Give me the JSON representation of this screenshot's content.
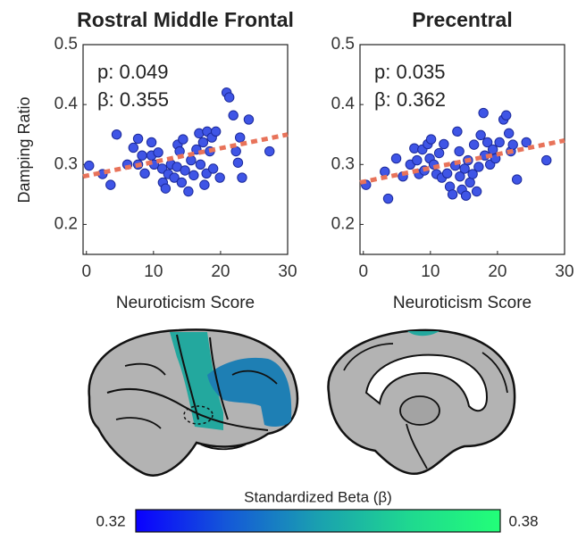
{
  "chart_data": [
    {
      "type": "scatter",
      "title": "Rostral Middle Frontal",
      "xlabel": "Neuroticism Score",
      "ylabel": "Damping Ratio",
      "annotations": [
        "p: 0.049",
        "β: 0.355"
      ],
      "x": [
        0.4,
        2.4,
        3.6,
        4.5,
        6.1,
        7,
        7.7,
        7.7,
        8.3,
        8.7,
        9.7,
        9.7,
        10.1,
        10.7,
        11.3,
        11.4,
        11.8,
        12.2,
        12.6,
        13.1,
        13.5,
        13.6,
        13.9,
        14.2,
        14.4,
        14.7,
        15.2,
        15.6,
        16,
        16.4,
        16.8,
        17,
        17.4,
        17.6,
        17.9,
        18,
        18.4,
        18.7,
        18.9,
        19.3,
        19.9,
        20.9,
        21.3,
        21.9,
        22.3,
        22.6,
        22.9,
        23.2,
        24.2,
        27.3
      ],
      "values": [
        0.298,
        0.284,
        0.266,
        0.35,
        0.3,
        0.328,
        0.343,
        0.3,
        0.315,
        0.285,
        0.337,
        0.315,
        0.3,
        0.32,
        0.293,
        0.27,
        0.26,
        0.284,
        0.3,
        0.278,
        0.296,
        0.333,
        0.322,
        0.27,
        0.342,
        0.29,
        0.255,
        0.307,
        0.282,
        0.325,
        0.352,
        0.3,
        0.337,
        0.266,
        0.285,
        0.355,
        0.322,
        0.345,
        0.293,
        0.355,
        0.278,
        0.42,
        0.412,
        0.382,
        0.322,
        0.303,
        0.345,
        0.278,
        0.375,
        0.322
      ],
      "color": "#3f55e6",
      "fit": {
        "x": [
          -0.5,
          30
        ],
        "y": [
          0.28,
          0.35
        ],
        "color": "#e8735a"
      },
      "xlim": [
        -0.5,
        30
      ],
      "ylim": [
        0.15,
        0.5
      ],
      "xticks": [
        0,
        10,
        20,
        30
      ],
      "yticks": [
        0.2,
        0.3,
        0.4,
        0.5
      ]
    },
    {
      "type": "scatter",
      "title": "Precentral",
      "xlabel": "Neuroticism Score",
      "annotations": [
        "p: 0.035",
        "β: 0.362"
      ],
      "x": [
        0.4,
        3.2,
        3.7,
        4.9,
        5.9,
        7,
        7.6,
        8,
        8.3,
        8.8,
        9.1,
        9.6,
        9.9,
        10.1,
        10.5,
        10.9,
        11.3,
        11.7,
        12,
        12.5,
        12.9,
        13.3,
        13.7,
        14,
        14.3,
        14.4,
        14.7,
        15.1,
        15.3,
        15.6,
        15.9,
        16.3,
        16.5,
        16.9,
        17.2,
        17.5,
        17.9,
        18.1,
        18.5,
        18.9,
        19.3,
        19.7,
        20.3,
        20.9,
        21.3,
        21.7,
        22,
        22.3,
        22.9,
        24.3,
        27.3
      ],
      "values": [
        0.266,
        0.288,
        0.243,
        0.31,
        0.28,
        0.3,
        0.327,
        0.307,
        0.284,
        0.325,
        0.29,
        0.334,
        0.31,
        0.342,
        0.3,
        0.284,
        0.319,
        0.278,
        0.334,
        0.285,
        0.263,
        0.25,
        0.298,
        0.355,
        0.322,
        0.28,
        0.258,
        0.293,
        0.248,
        0.307,
        0.27,
        0.284,
        0.333,
        0.255,
        0.296,
        0.349,
        0.386,
        0.315,
        0.337,
        0.3,
        0.325,
        0.31,
        0.337,
        0.375,
        0.382,
        0.352,
        0.322,
        0.333,
        0.275,
        0.337,
        0.307
      ],
      "color": "#3f55e6",
      "fit": {
        "x": [
          -0.5,
          30
        ],
        "y": [
          0.27,
          0.34
        ],
        "color": "#e8735a"
      },
      "xlim": [
        -0.5,
        30
      ],
      "ylim": [
        0.15,
        0.5
      ],
      "xticks": [
        0,
        10,
        20,
        30
      ],
      "yticks": [
        0.2,
        0.3,
        0.4,
        0.5
      ]
    }
  ],
  "colorbar": {
    "label": "Standardized Beta (β)",
    "ticks": [
      0.32,
      0.38
    ],
    "colors": [
      "#0a00ff",
      "#1458d8",
      "#1aa0b0",
      "#1fd890",
      "#22ff78"
    ]
  }
}
